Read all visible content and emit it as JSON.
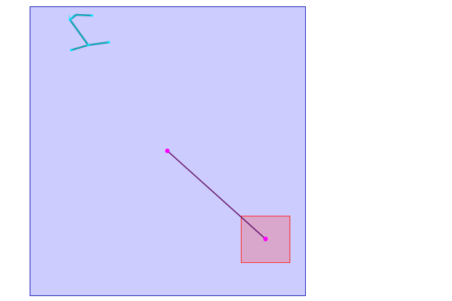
{
  "colors": {
    "page_background": "#ffffff",
    "arena_fill": "#ccccff",
    "arena_border": "#1f1fb8",
    "arm_stroke": "#1a6f7a",
    "arm_highlight": "#00e5ff",
    "pointer_line": "#6a1a6f",
    "pointer_endpoint": "#ff00ff",
    "target_fill": "#d9a6cc",
    "target_border": "#ff2a2a"
  },
  "icons": {
    "arm_joint": "cyan-dot",
    "pointer_endpoint": "magenta-dot"
  }
}
